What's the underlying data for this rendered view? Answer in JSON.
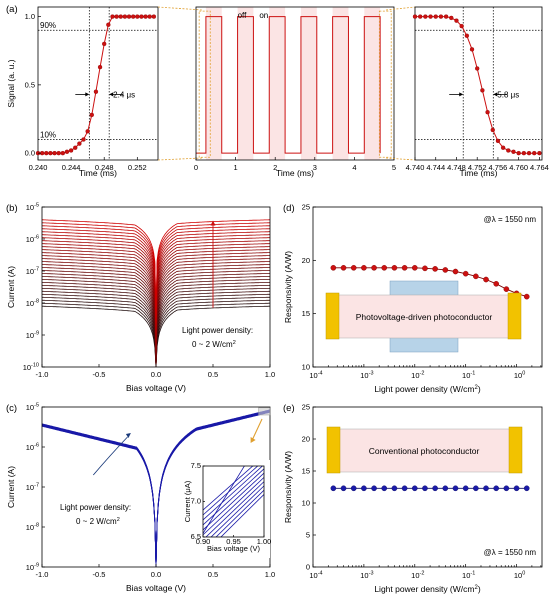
{
  "panel_labels": {
    "a": "(a)",
    "b": "(b)",
    "c": "(c)",
    "d": "(d)",
    "e": "(e)"
  },
  "colors": {
    "red": "#cc1111",
    "blue": "#1a1aa8",
    "gold": "#f2c200",
    "pink": "#fbe4e4",
    "lightblue": "#b7d3e8",
    "dashorange": "#e0a030"
  },
  "chart_data": [
    {
      "id": "a_rise",
      "type": "line",
      "xlabel": "Time (ms)",
      "ylabel": "Signal (a. u.)",
      "xlim": [
        0.24,
        0.2545
      ],
      "ylim": [
        -0.05,
        1.07
      ],
      "xticks": [
        "0.240",
        "0.244",
        "0.248",
        "0.252"
      ],
      "yticks": [
        "0.0",
        "0.5",
        "1.0"
      ],
      "annotations": [
        "90%",
        "10%",
        "2.4 μs"
      ],
      "x_10": 0.2462,
      "x_90": 0.2486,
      "x": [
        0.24,
        0.2405,
        0.241,
        0.2415,
        0.242,
        0.2425,
        0.243,
        0.2435,
        0.244,
        0.2445,
        0.245,
        0.2455,
        0.246,
        0.2465,
        0.247,
        0.2475,
        0.248,
        0.2485,
        0.249,
        0.2495,
        0.25,
        0.2505,
        0.251,
        0.2515,
        0.252,
        0.2525,
        0.253,
        0.2535,
        0.254
      ],
      "y": [
        0.0,
        0.0,
        0.0,
        0.0,
        0.0,
        0.0,
        0.0,
        0.01,
        0.02,
        0.04,
        0.07,
        0.1,
        0.16,
        0.28,
        0.45,
        0.63,
        0.8,
        0.94,
        1.0,
        1.0,
        1.0,
        1.0,
        1.0,
        1.0,
        1.0,
        1.0,
        1.0,
        1.0,
        1.0
      ]
    },
    {
      "id": "a_cycle",
      "type": "line",
      "xlabel": "Time (ms)",
      "xlim": [
        0,
        5
      ],
      "ylim": [
        -0.05,
        1.07
      ],
      "xticks": [
        "0",
        "1",
        "2",
        "3",
        "4",
        "5"
      ],
      "legend": [
        "off",
        "on"
      ],
      "period": 0.8,
      "on_duration": 0.4,
      "first_on": 0.25
    },
    {
      "id": "a_fall",
      "type": "line",
      "xlabel": "Time (ms)",
      "xlim": [
        4.74,
        4.7645
      ],
      "ylim": [
        -0.05,
        1.07
      ],
      "xticks": [
        "4.740",
        "4.744",
        "4.748",
        "4.752",
        "4.756",
        "4.760",
        "4.764"
      ],
      "annotations": [
        "5.8 μs"
      ],
      "x_90": 4.7493,
      "x_10": 4.7551,
      "x": [
        4.74,
        4.741,
        4.742,
        4.743,
        4.744,
        4.745,
        4.746,
        4.747,
        4.748,
        4.749,
        4.75,
        4.751,
        4.752,
        4.753,
        4.754,
        4.755,
        4.756,
        4.757,
        4.758,
        4.759,
        4.76,
        4.761,
        4.762,
        4.763,
        4.764
      ],
      "y": [
        1.0,
        1.0,
        1.0,
        1.0,
        1.0,
        1.0,
        1.0,
        0.99,
        0.97,
        0.93,
        0.86,
        0.76,
        0.62,
        0.46,
        0.3,
        0.17,
        0.09,
        0.04,
        0.02,
        0.01,
        0.0,
        0.0,
        0.0,
        0.0,
        0.0
      ]
    },
    {
      "id": "b",
      "type": "line",
      "xlabel": "Bias voltage (V)",
      "ylabel": "Current (A)",
      "xlim": [
        -1.0,
        1.0
      ],
      "ylim_log10": [
        -10,
        -5
      ],
      "xticks": [
        "-1.0",
        "-0.5",
        "0.0",
        "0.5",
        "1.0"
      ],
      "yticks": [
        "10",
        "10",
        "10",
        "10",
        "10",
        "10"
      ],
      "yexp": [
        "-10",
        "-9",
        "-8",
        "-7",
        "-6",
        "-5"
      ],
      "annotation": [
        "Light power density:",
        "0 ~ 2 W/cm",
        "2"
      ],
      "curve_count": 30,
      "log10_current_at_1V_min": -8.1,
      "log10_current_at_1V_max": -5.4
    },
    {
      "id": "c",
      "type": "line",
      "xlabel": "Bias voltage (V)",
      "ylabel": "Current (A)",
      "xlim": [
        -1.0,
        1.0
      ],
      "ylim_log10": [
        -9,
        -5
      ],
      "xticks": [
        "-1.0",
        "-0.5",
        "0.0",
        "0.5",
        "1.0"
      ],
      "yticks": [
        "10",
        "10",
        "10",
        "10",
        "10"
      ],
      "yexp": [
        "-9",
        "-8",
        "-7",
        "-6",
        "-5"
      ],
      "annotation": [
        "Light power density:",
        "0 ~ 2 W/cm",
        "2"
      ],
      "curve_count": 10,
      "log10_current_at_1V_min": -5.13,
      "log10_current_at_1V_max": -5.07,
      "inset": {
        "xlabel": "Bias voltage (V)",
        "ylabel": "Current (μA)",
        "xlim": [
          0.9,
          1.0
        ],
        "ylim": [
          6.5,
          7.5
        ],
        "xticks": [
          "0.90",
          "0.95",
          "1.00"
        ],
        "yticks": [
          "6.5",
          "7.0",
          "7.5"
        ]
      }
    },
    {
      "id": "d",
      "type": "scatter",
      "xlabel": "Light power density (W/cm",
      "xlabel_sup": "2",
      "ylabel": "Responsivity (A/W)",
      "xscale": "log",
      "xlim_log10": [
        -4,
        0.5
      ],
      "ylim": [
        10,
        25
      ],
      "xticks": [
        "10",
        "10",
        "10",
        "10",
        "10"
      ],
      "xexp": [
        "-4",
        "-3",
        "-2",
        "-1",
        "0"
      ],
      "yticks": [
        "10",
        "15",
        "20",
        "25"
      ],
      "wavelength_label": "@λ = 1550 nm",
      "device_label": "Photovoltage-driven photoconductor",
      "log10_x": [
        -3.6,
        -3.4,
        -3.2,
        -3.0,
        -2.8,
        -2.6,
        -2.4,
        -2.2,
        -2.0,
        -1.8,
        -1.6,
        -1.4,
        -1.2,
        -1.0,
        -0.8,
        -0.6,
        -0.4,
        -0.2,
        0.0,
        0.2
      ],
      "y": [
        19.3,
        19.3,
        19.3,
        19.3,
        19.3,
        19.3,
        19.3,
        19.3,
        19.3,
        19.25,
        19.2,
        19.1,
        18.95,
        18.75,
        18.5,
        18.2,
        17.8,
        17.3,
        16.9,
        16.6
      ]
    },
    {
      "id": "e",
      "type": "scatter",
      "xlabel": "Light power density (W/cm",
      "xlabel_sup": "2",
      "ylabel": "Responsivity (A/W)",
      "xscale": "log",
      "xlim_log10": [
        -4,
        0.5
      ],
      "ylim": [
        0,
        25
      ],
      "xticks": [
        "10",
        "10",
        "10",
        "10",
        "10"
      ],
      "xexp": [
        "-4",
        "-3",
        "-2",
        "-1",
        "0"
      ],
      "yticks": [
        "0",
        "5",
        "10",
        "15",
        "20",
        "25"
      ],
      "wavelength_label": "@λ = 1550 nm",
      "device_label": "Conventional photoconductor",
      "log10_x": [
        -3.6,
        -3.4,
        -3.2,
        -3.0,
        -2.8,
        -2.6,
        -2.4,
        -2.2,
        -2.0,
        -1.8,
        -1.6,
        -1.4,
        -1.2,
        -1.0,
        -0.8,
        -0.6,
        -0.4,
        -0.2,
        0.0,
        0.2
      ],
      "y": [
        12.3,
        12.3,
        12.3,
        12.3,
        12.3,
        12.3,
        12.3,
        12.3,
        12.3,
        12.3,
        12.3,
        12.3,
        12.3,
        12.3,
        12.3,
        12.3,
        12.3,
        12.3,
        12.3,
        12.3
      ]
    }
  ]
}
